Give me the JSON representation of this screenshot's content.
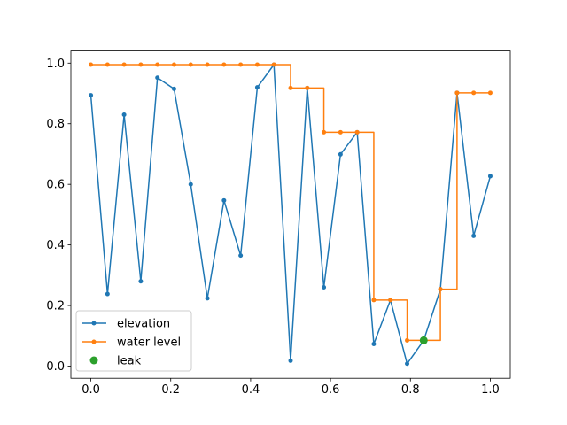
{
  "chart_data": {
    "type": "line",
    "title": "",
    "xlabel": "",
    "ylabel": "",
    "xlim": [
      -0.05,
      1.05
    ],
    "ylim": [
      -0.04,
      1.04
    ],
    "x_ticks": [
      0.0,
      0.2,
      0.4,
      0.6,
      0.8,
      1.0
    ],
    "x_tick_labels": [
      "0.0",
      "0.2",
      "0.4",
      "0.6",
      "0.8",
      "1.0"
    ],
    "y_ticks": [
      0.0,
      0.2,
      0.4,
      0.6,
      0.8,
      1.0
    ],
    "y_tick_labels": [
      "0.0",
      "0.2",
      "0.4",
      "0.6",
      "0.8",
      "1.0"
    ],
    "grid": false,
    "legend_position": "lower-left",
    "x": [
      0.0,
      0.0417,
      0.0833,
      0.125,
      0.1667,
      0.2083,
      0.25,
      0.2917,
      0.3333,
      0.375,
      0.4167,
      0.4583,
      0.5,
      0.5417,
      0.5833,
      0.625,
      0.6667,
      0.7083,
      0.75,
      0.7917,
      0.8333,
      0.875,
      0.9167,
      0.9583,
      1.0
    ],
    "series": [
      {
        "name": "elevation",
        "color": "#1f77b4",
        "style": "line-dot",
        "values": [
          0.894,
          0.238,
          0.83,
          0.28,
          0.952,
          0.915,
          0.6,
          0.224,
          0.547,
          0.365,
          0.92,
          0.995,
          0.018,
          0.918,
          0.26,
          0.699,
          0.772,
          0.073,
          0.218,
          0.008,
          0.085,
          0.254,
          0.902,
          0.43,
          0.627
        ]
      },
      {
        "name": "water level",
        "color": "#ff7f0e",
        "style": "step-line-dot",
        "values": [
          0.995,
          0.995,
          0.995,
          0.995,
          0.995,
          0.995,
          0.995,
          0.995,
          0.995,
          0.995,
          0.995,
          0.995,
          0.918,
          0.918,
          0.772,
          0.772,
          0.772,
          0.218,
          0.218,
          0.085,
          0.085,
          0.254,
          0.902,
          0.902,
          0.902
        ]
      },
      {
        "name": "leak",
        "color": "#2ca02c",
        "style": "marker",
        "points": [
          {
            "x": 0.8333,
            "y": 0.085
          }
        ]
      }
    ]
  }
}
